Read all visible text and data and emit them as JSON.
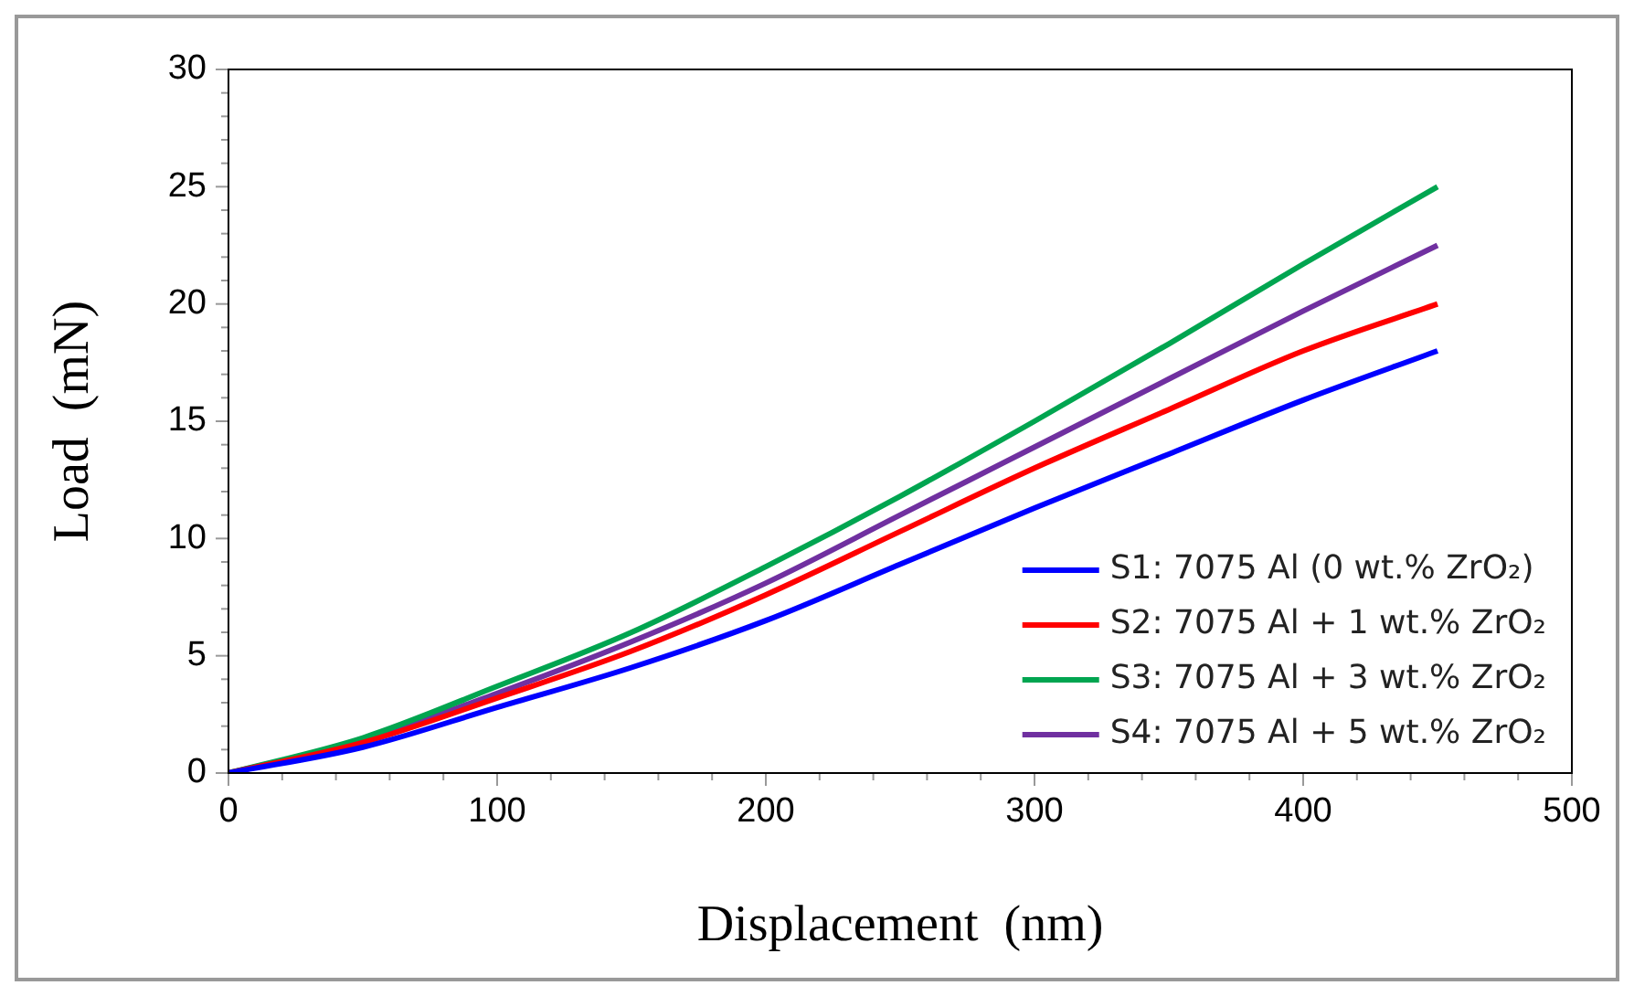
{
  "chart_data": {
    "type": "line",
    "xlabel": "Displacement  (nm)",
    "ylabel": "Load  (mN)",
    "x": [
      0,
      50,
      100,
      150,
      200,
      250,
      300,
      350,
      400,
      450
    ],
    "series": [
      {
        "name": "S1: 7075 Al (0 wt.% ZrO₂)",
        "color": "#0000ff",
        "values": [
          0,
          1.1,
          2.8,
          4.5,
          6.5,
          8.9,
          11.3,
          13.6,
          15.9,
          18.0
        ]
      },
      {
        "name": "S2: 7075 Al + 1 wt.% ZrO₂",
        "color": "#ff0000",
        "values": [
          0,
          1.3,
          3.2,
          5.2,
          7.6,
          10.3,
          13.0,
          15.5,
          18.0,
          20.0
        ]
      },
      {
        "name": "S3: 7075 Al + 3 wt.% ZrO₂",
        "color": "#00a550",
        "values": [
          0,
          1.5,
          3.7,
          6.0,
          8.8,
          11.8,
          15.0,
          18.3,
          21.7,
          25.0
        ]
      },
      {
        "name": "S4: 7075 Al + 5 wt.% ZrO₂",
        "color": "#7030a0",
        "values": [
          0,
          1.4,
          3.4,
          5.6,
          8.1,
          11.0,
          13.9,
          16.8,
          19.7,
          22.5
        ]
      }
    ],
    "xlim": [
      0,
      500
    ],
    "xticks": [
      0,
      {
        "value": 20,
        "label": null
      },
      {
        "value": 40,
        "label": null
      },
      {
        "value": 60,
        "label": null
      },
      {
        "value": 80,
        "label": null
      },
      100,
      {
        "value": 120,
        "label": null
      },
      {
        "value": 140,
        "label": null
      },
      {
        "value": 160,
        "label": null
      },
      {
        "value": 180,
        "label": null
      },
      200,
      {
        "value": 220,
        "label": null
      },
      {
        "value": 240,
        "label": null
      },
      {
        "value": 260,
        "label": null
      },
      {
        "value": 280,
        "label": null
      },
      300,
      {
        "value": 320,
        "label": null
      },
      {
        "value": 340,
        "label": null
      },
      {
        "value": 360,
        "label": null
      },
      {
        "value": 380,
        "label": null
      },
      400,
      {
        "value": 420,
        "label": null
      },
      {
        "value": 440,
        "label": null
      },
      {
        "value": 460,
        "label": null
      },
      {
        "value": 480,
        "label": null
      },
      500
    ],
    "ylim": [
      0,
      30
    ],
    "yticks": [
      0,
      {
        "value": 1,
        "label": null
      },
      {
        "value": 2,
        "label": null
      },
      {
        "value": 3,
        "label": null
      },
      {
        "value": 4,
        "label": null
      },
      5,
      {
        "value": 6,
        "label": null
      },
      {
        "value": 7,
        "label": null
      },
      {
        "value": 8,
        "label": null
      },
      {
        "value": 9,
        "label": null
      },
      10,
      {
        "value": 11,
        "label": null
      },
      {
        "value": 12,
        "label": null
      },
      {
        "value": 13,
        "label": null
      },
      {
        "value": 14,
        "label": null
      },
      15,
      {
        "value": 16,
        "label": null
      },
      {
        "value": 17,
        "label": null
      },
      {
        "value": 18,
        "label": null
      },
      {
        "value": 19,
        "label": null
      },
      20,
      {
        "value": 21,
        "label": null
      },
      {
        "value": 22,
        "label": null
      },
      {
        "value": 23,
        "label": null
      },
      {
        "value": 24,
        "label": null
      },
      25,
      {
        "value": 26,
        "label": null
      },
      {
        "value": 27,
        "label": null
      },
      {
        "value": 28,
        "label": null
      },
      {
        "value": 29,
        "label": null
      },
      30
    ],
    "grid": false,
    "legend": "bottom right",
    "marker": "none",
    "line_style": "solid"
  }
}
